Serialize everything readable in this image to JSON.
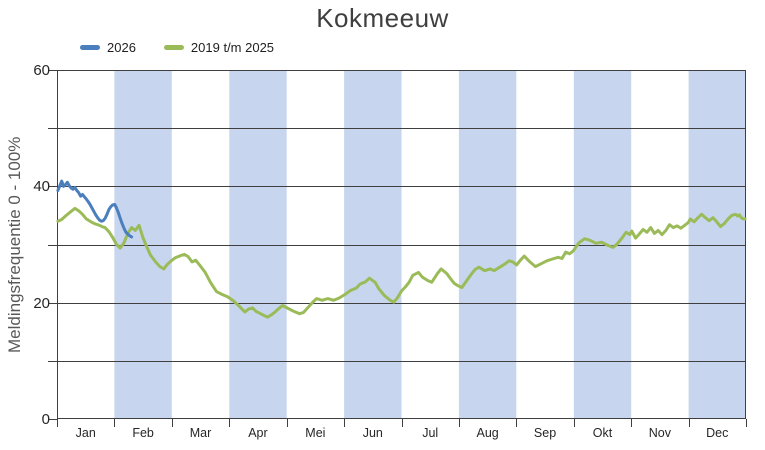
{
  "chart_data": {
    "type": "line",
    "title": "Kokmeeuw",
    "xlabel": "",
    "ylabel": "Meldingsfrequentie 0 - 100%",
    "ylim": [
      0,
      60
    ],
    "ytick_interval": 10,
    "ytick_label_values": [
      0,
      20,
      40,
      60
    ],
    "x_unit": "day_of_year",
    "x_range_days": [
      1,
      365
    ],
    "categories": [
      "Jan",
      "Feb",
      "Mar",
      "Apr",
      "Mei",
      "Jun",
      "Jul",
      "Aug",
      "Sep",
      "Okt",
      "Nov",
      "Dec"
    ],
    "shaded_months": [
      "Feb",
      "Apr",
      "Jun",
      "Aug",
      "Okt",
      "Dec"
    ],
    "grid": "horizontal-every-10",
    "legend_position": "top-left",
    "colors": {
      "band": "#c7d6ee",
      "grid": "#3f3f3f",
      "axis": "#3f3f3f"
    },
    "series": [
      {
        "name": "2026",
        "color": "#4a7ebc",
        "points": [
          [
            1,
            39.3
          ],
          [
            2,
            40.1
          ],
          [
            3,
            40.9
          ],
          [
            4,
            40.0
          ],
          [
            5,
            40.3
          ],
          [
            6,
            40.7
          ],
          [
            7,
            40.1
          ],
          [
            8,
            39.7
          ],
          [
            9,
            39.5
          ],
          [
            10,
            39.8
          ],
          [
            11,
            39.3
          ],
          [
            12,
            38.9
          ],
          [
            13,
            38.3
          ],
          [
            14,
            38.6
          ],
          [
            15,
            38.2
          ],
          [
            16,
            37.8
          ],
          [
            17,
            37.4
          ],
          [
            18,
            36.9
          ],
          [
            19,
            36.3
          ],
          [
            20,
            35.7
          ],
          [
            21,
            35.1
          ],
          [
            22,
            34.6
          ],
          [
            23,
            34.2
          ],
          [
            24,
            34.0
          ],
          [
            25,
            34.1
          ],
          [
            26,
            34.5
          ],
          [
            27,
            35.2
          ],
          [
            28,
            36.0
          ],
          [
            29,
            36.5
          ],
          [
            30,
            36.8
          ],
          [
            31,
            36.9
          ],
          [
            32,
            36.3
          ],
          [
            33,
            35.5
          ],
          [
            34,
            34.5
          ],
          [
            35,
            33.6
          ],
          [
            36,
            32.8
          ],
          [
            37,
            32.1
          ],
          [
            38,
            31.8
          ],
          [
            39,
            31.5
          ],
          [
            40,
            31.3
          ]
        ]
      },
      {
        "name": "2019 t/m 2025",
        "color": "#9bbb59",
        "points": [
          [
            1,
            34.0
          ],
          [
            3,
            34.3
          ],
          [
            5,
            34.9
          ],
          [
            8,
            35.7
          ],
          [
            10,
            36.2
          ],
          [
            12,
            35.8
          ],
          [
            14,
            35.2
          ],
          [
            16,
            34.4
          ],
          [
            19,
            33.8
          ],
          [
            21,
            33.5
          ],
          [
            23,
            33.3
          ],
          [
            25,
            33.0
          ],
          [
            26,
            32.9
          ],
          [
            28,
            32.2
          ],
          [
            30,
            31.2
          ],
          [
            32,
            30.0
          ],
          [
            34,
            29.4
          ],
          [
            36,
            30.3
          ],
          [
            38,
            31.9
          ],
          [
            40,
            32.9
          ],
          [
            42,
            32.4
          ],
          [
            44,
            33.3
          ],
          [
            46,
            31.2
          ],
          [
            48,
            29.6
          ],
          [
            50,
            28.2
          ],
          [
            53,
            26.9
          ],
          [
            55,
            26.2
          ],
          [
            57,
            25.8
          ],
          [
            59,
            26.6
          ],
          [
            61,
            27.2
          ],
          [
            63,
            27.7
          ],
          [
            66,
            28.1
          ],
          [
            68,
            28.3
          ],
          [
            70,
            27.9
          ],
          [
            72,
            27.0
          ],
          [
            74,
            27.3
          ],
          [
            76,
            26.5
          ],
          [
            79,
            25.2
          ],
          [
            82,
            23.4
          ],
          [
            85,
            21.9
          ],
          [
            88,
            21.4
          ],
          [
            91,
            21.0
          ],
          [
            94,
            20.3
          ],
          [
            97,
            19.4
          ],
          [
            100,
            18.4
          ],
          [
            102,
            18.9
          ],
          [
            104,
            19.1
          ],
          [
            106,
            18.5
          ],
          [
            109,
            18.0
          ],
          [
            112,
            17.5
          ],
          [
            114,
            17.9
          ],
          [
            116,
            18.4
          ],
          [
            118,
            19.0
          ],
          [
            120,
            19.5
          ],
          [
            123,
            19.0
          ],
          [
            126,
            18.5
          ],
          [
            129,
            18.1
          ],
          [
            131,
            18.3
          ],
          [
            133,
            19.0
          ],
          [
            136,
            20.1
          ],
          [
            138,
            20.7
          ],
          [
            141,
            20.4
          ],
          [
            144,
            20.7
          ],
          [
            147,
            20.4
          ],
          [
            150,
            20.8
          ],
          [
            153,
            21.4
          ],
          [
            156,
            22.1
          ],
          [
            159,
            22.5
          ],
          [
            161,
            23.2
          ],
          [
            164,
            23.6
          ],
          [
            166,
            24.2
          ],
          [
            169,
            23.5
          ],
          [
            171,
            22.4
          ],
          [
            174,
            21.2
          ],
          [
            177,
            20.4
          ],
          [
            179,
            20.1
          ],
          [
            181,
            20.9
          ],
          [
            183,
            22.0
          ],
          [
            185,
            22.7
          ],
          [
            187,
            23.5
          ],
          [
            189,
            24.7
          ],
          [
            192,
            25.2
          ],
          [
            194,
            24.4
          ],
          [
            197,
            23.8
          ],
          [
            199,
            23.5
          ],
          [
            202,
            25.0
          ],
          [
            204,
            25.8
          ],
          [
            207,
            25.0
          ],
          [
            209,
            24.1
          ],
          [
            211,
            23.3
          ],
          [
            213,
            22.9
          ],
          [
            215,
            22.6
          ],
          [
            218,
            24.0
          ],
          [
            220,
            24.9
          ],
          [
            222,
            25.7
          ],
          [
            224,
            26.1
          ],
          [
            227,
            25.5
          ],
          [
            230,
            25.8
          ],
          [
            232,
            25.5
          ],
          [
            235,
            26.1
          ],
          [
            238,
            26.7
          ],
          [
            240,
            27.2
          ],
          [
            242,
            27.0
          ],
          [
            244,
            26.5
          ],
          [
            246,
            27.3
          ],
          [
            248,
            28.0
          ],
          [
            251,
            27.0
          ],
          [
            254,
            26.2
          ],
          [
            257,
            26.7
          ],
          [
            260,
            27.2
          ],
          [
            263,
            27.5
          ],
          [
            266,
            27.8
          ],
          [
            268,
            27.6
          ],
          [
            270,
            28.7
          ],
          [
            272,
            28.4
          ],
          [
            274,
            28.9
          ],
          [
            277,
            30.3
          ],
          [
            280,
            31.0
          ],
          [
            283,
            30.7
          ],
          [
            286,
            30.2
          ],
          [
            289,
            30.4
          ],
          [
            292,
            29.9
          ],
          [
            295,
            29.5
          ],
          [
            297,
            30.0
          ],
          [
            300,
            31.2
          ],
          [
            302,
            32.1
          ],
          [
            304,
            31.7
          ],
          [
            305,
            32.3
          ],
          [
            307,
            31.1
          ],
          [
            309,
            31.8
          ],
          [
            311,
            32.6
          ],
          [
            313,
            32.1
          ],
          [
            315,
            32.9
          ],
          [
            317,
            31.9
          ],
          [
            319,
            32.4
          ],
          [
            321,
            31.7
          ],
          [
            323,
            32.4
          ],
          [
            325,
            33.4
          ],
          [
            327,
            32.9
          ],
          [
            329,
            33.2
          ],
          [
            331,
            32.8
          ],
          [
            333,
            33.3
          ],
          [
            335,
            33.8
          ],
          [
            336,
            34.4
          ],
          [
            338,
            33.9
          ],
          [
            340,
            34.6
          ],
          [
            342,
            35.2
          ],
          [
            344,
            34.6
          ],
          [
            346,
            34.1
          ],
          [
            348,
            34.6
          ],
          [
            350,
            33.9
          ],
          [
            352,
            33.1
          ],
          [
            354,
            33.6
          ],
          [
            356,
            34.4
          ],
          [
            358,
            35.0
          ],
          [
            360,
            35.2
          ],
          [
            361,
            34.9
          ],
          [
            362,
            35.1
          ],
          [
            363,
            34.6
          ],
          [
            364,
            34.4
          ],
          [
            365,
            34.4
          ]
        ]
      }
    ]
  }
}
